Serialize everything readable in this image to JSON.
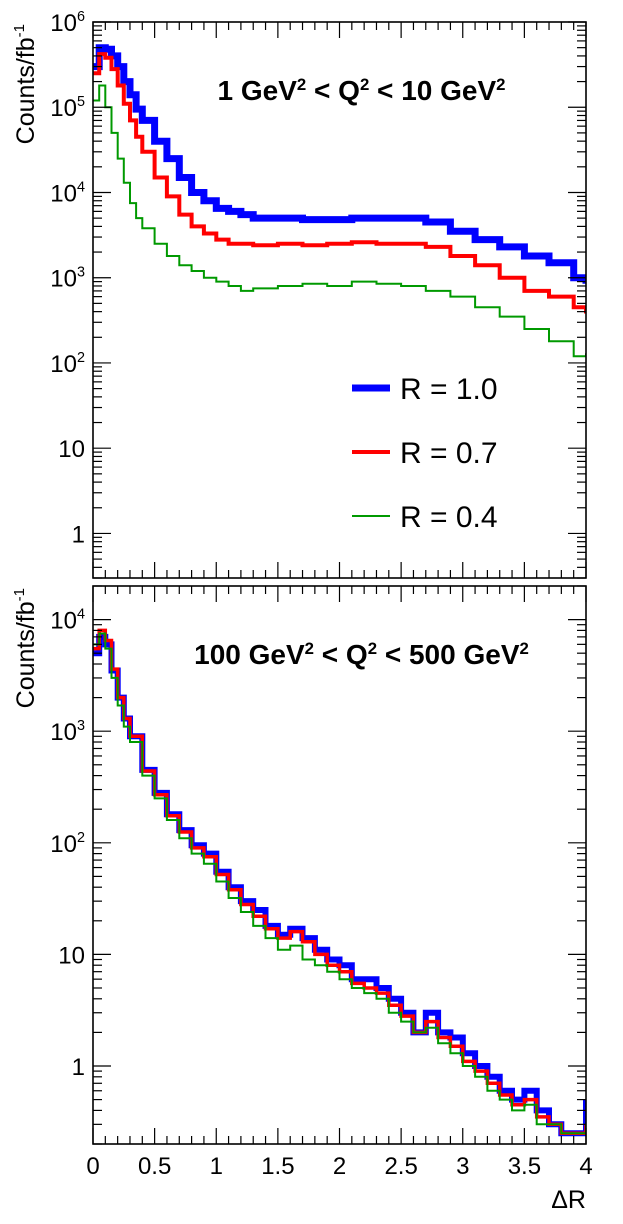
{
  "chart_data": [
    {
      "type": "line",
      "title": "1 GeV",
      "title_sup": "2",
      "title_mid": " < Q",
      "title_mid_sup": "2",
      "title_end": " < 10 GeV",
      "title_end_sup": "2",
      "ylabel": "Counts/fb",
      "ylabel_sup": "-1",
      "xlabel": "",
      "xlim": [
        0,
        4
      ],
      "ylim": [
        0.3,
        1000000
      ],
      "yscale": "log",
      "yticklabels": [
        {
          "v": 1000000,
          "base": "10",
          "exp": "6"
        },
        {
          "v": 100000,
          "base": "10",
          "exp": "5"
        },
        {
          "v": 10000,
          "base": "10",
          "exp": "4"
        },
        {
          "v": 1000,
          "base": "10",
          "exp": "3"
        },
        {
          "v": 100,
          "base": "10",
          "exp": "2"
        },
        {
          "v": 10,
          "base": "10",
          "exp": ""
        },
        {
          "v": 1,
          "base": "1",
          "exp": ""
        }
      ],
      "legend": "inside right",
      "series": [
        {
          "name": "R = 1.0",
          "color": "#0000ff",
          "x": [
            0.0,
            0.05,
            0.1,
            0.15,
            0.2,
            0.25,
            0.3,
            0.35,
            0.4,
            0.5,
            0.6,
            0.7,
            0.8,
            0.9,
            1.0,
            1.1,
            1.2,
            1.3,
            1.5,
            1.7,
            1.9,
            2.1,
            2.3,
            2.5,
            2.7,
            2.9,
            3.1,
            3.3,
            3.5,
            3.7,
            3.9,
            4.0
          ],
          "y": [
            300000,
            500000,
            480000,
            400000,
            300000,
            200000,
            140000,
            95000,
            70000,
            40000,
            25000,
            15000,
            10000,
            8000,
            6500,
            6000,
            5500,
            5000,
            5000,
            4800,
            4800,
            5000,
            5000,
            5000,
            4500,
            3500,
            2800,
            2300,
            1800,
            1500,
            1000,
            850
          ]
        },
        {
          "name": "R = 0.7",
          "color": "#ff0000",
          "x": [
            0.0,
            0.05,
            0.1,
            0.15,
            0.2,
            0.25,
            0.3,
            0.35,
            0.4,
            0.5,
            0.6,
            0.7,
            0.8,
            0.9,
            1.0,
            1.1,
            1.2,
            1.3,
            1.5,
            1.7,
            1.9,
            2.1,
            2.3,
            2.5,
            2.7,
            2.9,
            3.1,
            3.3,
            3.5,
            3.7,
            3.9,
            4.0
          ],
          "y": [
            250000,
            420000,
            380000,
            280000,
            180000,
            110000,
            70000,
            45000,
            30000,
            15000,
            9000,
            5500,
            4000,
            3300,
            2800,
            2500,
            2500,
            2400,
            2500,
            2400,
            2500,
            2600,
            2500,
            2500,
            2300,
            1800,
            1400,
            1000,
            700,
            600,
            450,
            380
          ]
        },
        {
          "name": "R = 0.4",
          "color": "#009900",
          "x": [
            0.0,
            0.05,
            0.1,
            0.15,
            0.2,
            0.25,
            0.3,
            0.35,
            0.4,
            0.5,
            0.6,
            0.7,
            0.8,
            0.9,
            1.0,
            1.1,
            1.2,
            1.3,
            1.5,
            1.7,
            1.9,
            2.1,
            2.3,
            2.5,
            2.7,
            2.9,
            3.1,
            3.3,
            3.5,
            3.7,
            3.9,
            4.0
          ],
          "y": [
            120000,
            180000,
            100000,
            50000,
            25000,
            13000,
            7500,
            5000,
            3800,
            2500,
            1800,
            1400,
            1200,
            1000,
            900,
            800,
            700,
            750,
            800,
            850,
            800,
            900,
            850,
            800,
            700,
            600,
            450,
            350,
            250,
            180,
            120,
            130
          ]
        }
      ]
    },
    {
      "type": "line",
      "title": "100 GeV",
      "title_sup": "2",
      "title_mid": " < Q",
      "title_mid_sup": "2",
      "title_end": " < 500 GeV",
      "title_end_sup": "2",
      "ylabel": "Counts/fb",
      "ylabel_sup": "-1",
      "xlabel": "ΔR",
      "xlim": [
        0,
        4
      ],
      "ylim": [
        0.2,
        20000
      ],
      "yscale": "log",
      "xticklabels": [
        "0",
        "0.5",
        "1",
        "1.5",
        "2",
        "2.5",
        "3",
        "3.5",
        "4"
      ],
      "yticklabels": [
        {
          "v": 10000,
          "base": "10",
          "exp": "4"
        },
        {
          "v": 1000,
          "base": "10",
          "exp": "3"
        },
        {
          "v": 100,
          "base": "10",
          "exp": "2"
        },
        {
          "v": 10,
          "base": "10",
          "exp": ""
        },
        {
          "v": 1,
          "base": "1",
          "exp": ""
        }
      ],
      "series": [
        {
          "name": "R = 1.0",
          "color": "#0000ff",
          "x": [
            0.0,
            0.05,
            0.1,
            0.15,
            0.2,
            0.25,
            0.3,
            0.4,
            0.5,
            0.6,
            0.7,
            0.8,
            0.9,
            1.0,
            1.1,
            1.2,
            1.3,
            1.4,
            1.5,
            1.6,
            1.7,
            1.8,
            1.9,
            2.0,
            2.1,
            2.2,
            2.3,
            2.4,
            2.5,
            2.6,
            2.7,
            2.8,
            2.9,
            3.0,
            3.1,
            3.2,
            3.3,
            3.4,
            3.5,
            3.6,
            3.7,
            3.8,
            3.9,
            4.0
          ],
          "y": [
            5000,
            7000,
            6000,
            3500,
            2000,
            1300,
            900,
            450,
            280,
            180,
            130,
            95,
            80,
            55,
            40,
            30,
            25,
            18,
            15,
            17,
            14,
            11,
            9,
            8,
            6,
            6,
            5,
            4,
            3,
            2,
            3,
            2,
            1.8,
            1.3,
            1,
            0.8,
            0.6,
            0.5,
            0.6,
            0.4,
            0.3,
            0.25,
            0.25,
            0.5
          ]
        },
        {
          "name": "R = 0.7",
          "color": "#ff0000",
          "x": [
            0.0,
            0.05,
            0.1,
            0.15,
            0.2,
            0.25,
            0.3,
            0.4,
            0.5,
            0.6,
            0.7,
            0.8,
            0.9,
            1.0,
            1.1,
            1.2,
            1.3,
            1.4,
            1.5,
            1.6,
            1.7,
            1.8,
            1.9,
            2.0,
            2.1,
            2.2,
            2.3,
            2.4,
            2.5,
            2.6,
            2.7,
            2.8,
            2.9,
            3.0,
            3.1,
            3.2,
            3.3,
            3.4,
            3.5,
            3.6,
            3.7,
            3.8,
            3.9,
            4.0
          ],
          "y": [
            5500,
            8000,
            6500,
            3600,
            2000,
            1300,
            900,
            440,
            270,
            175,
            125,
            90,
            75,
            52,
            38,
            28,
            22,
            17,
            14,
            16,
            13,
            10,
            8,
            7,
            5.5,
            5,
            4.5,
            3.5,
            2.8,
            2,
            2.5,
            1.8,
            1.5,
            1.1,
            0.9,
            0.7,
            0.55,
            0.45,
            0.5,
            0.35,
            0.3,
            0.25,
            0.25,
            0.3
          ]
        },
        {
          "name": "R = 0.4",
          "color": "#009900",
          "x": [
            0.0,
            0.05,
            0.1,
            0.15,
            0.2,
            0.25,
            0.3,
            0.4,
            0.5,
            0.6,
            0.7,
            0.8,
            0.9,
            1.0,
            1.1,
            1.2,
            1.3,
            1.4,
            1.5,
            1.6,
            1.7,
            1.8,
            1.9,
            2.0,
            2.1,
            2.2,
            2.3,
            2.4,
            2.5,
            2.6,
            2.7,
            2.8,
            2.9,
            3.0,
            3.1,
            3.2,
            3.3,
            3.4,
            3.5,
            3.6,
            3.7,
            3.8,
            3.9,
            4.0
          ],
          "y": [
            6000,
            7500,
            5500,
            3000,
            1700,
            1100,
            800,
            400,
            250,
            160,
            110,
            80,
            65,
            45,
            32,
            24,
            18,
            14,
            11,
            12,
            9,
            8,
            7,
            6,
            5,
            4.5,
            4,
            3,
            2.5,
            2,
            2.2,
            1.6,
            1.3,
            1,
            0.8,
            0.6,
            0.5,
            0.4,
            0.45,
            0.3,
            0.3,
            0.25,
            0.25,
            0.3
          ]
        }
      ]
    }
  ]
}
